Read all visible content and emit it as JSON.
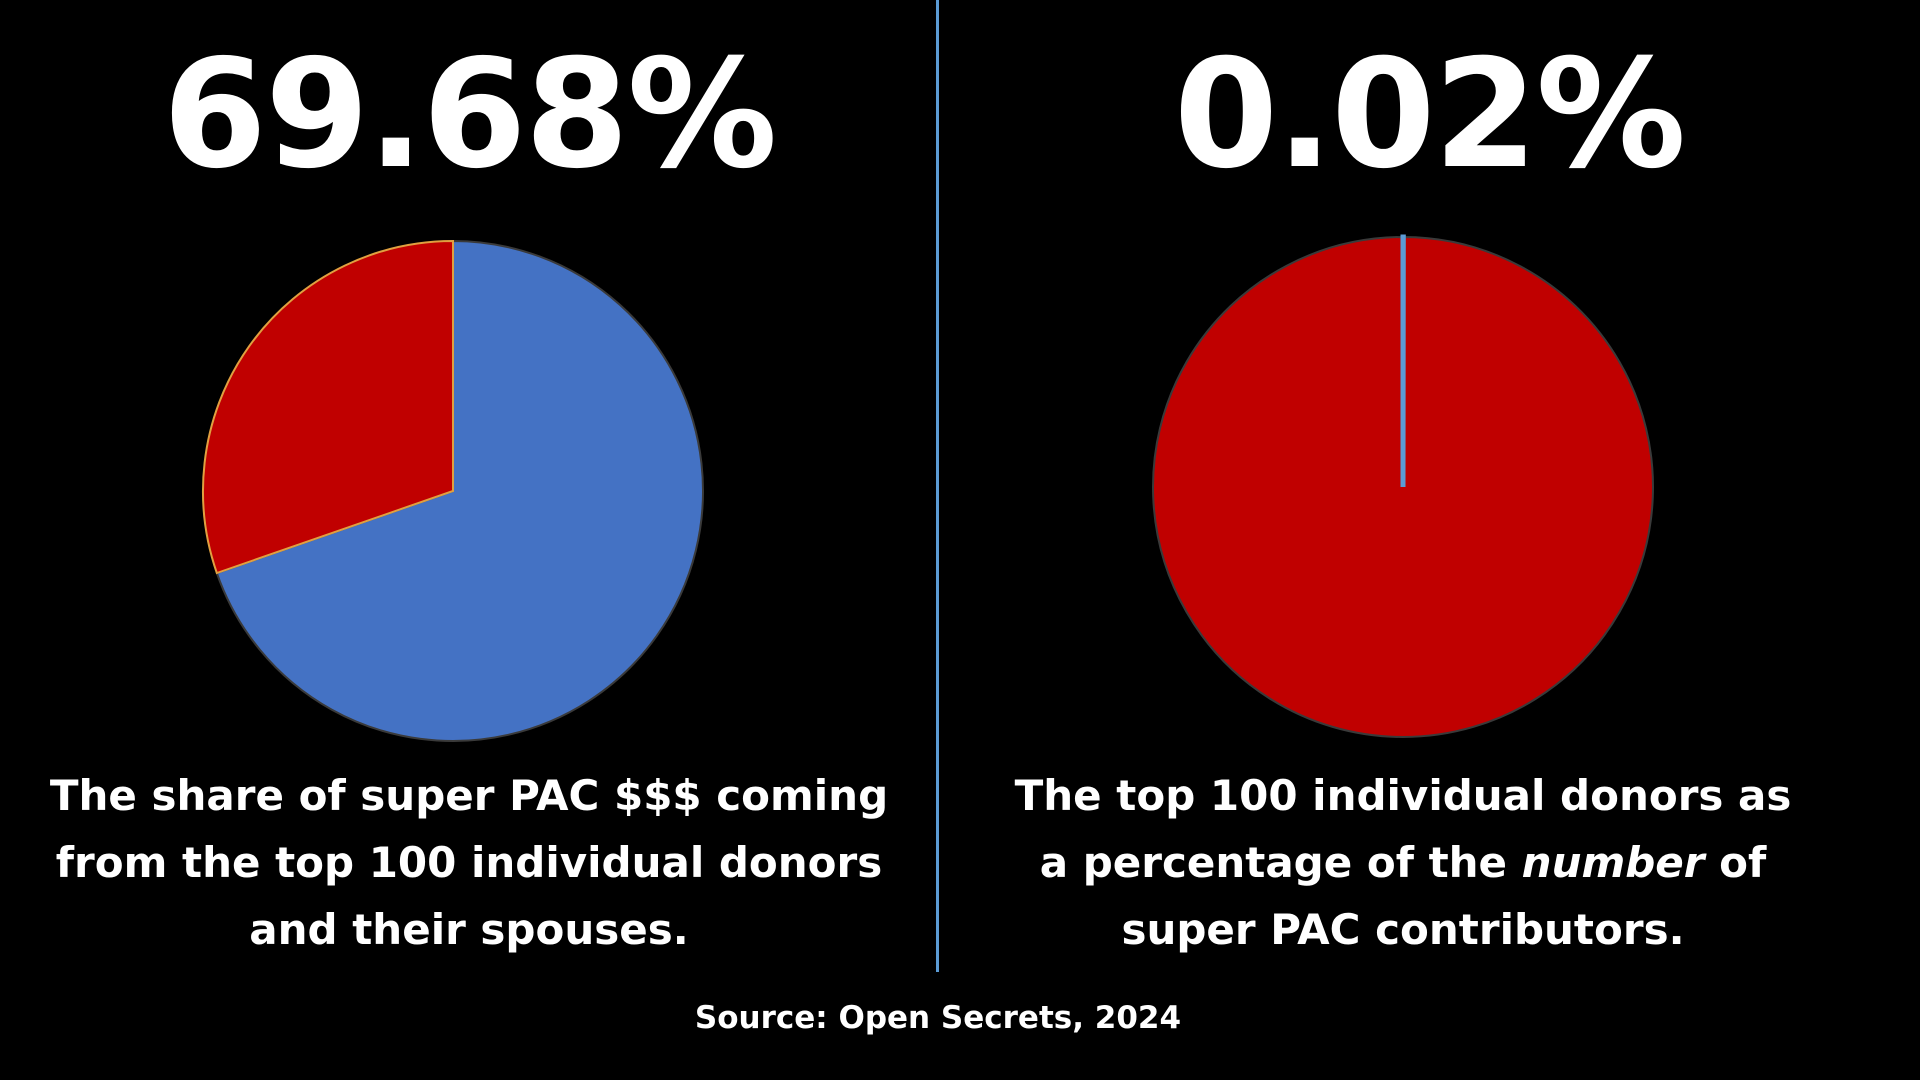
{
  "chart_data": [
    {
      "type": "pie",
      "headline": "69.68%",
      "caption_lines": [
        "The share of super PAC $$$ coming",
        "from the top 100 individual donors",
        "and their spouses."
      ],
      "slices": [
        {
          "value": 69.68,
          "color": "#4472c4"
        },
        {
          "value": 30.32,
          "color": "#c00000"
        }
      ]
    },
    {
      "type": "pie",
      "headline": "0.02%",
      "caption_parts": [
        "The top 100 individual donors as",
        "a percentage of the ",
        "number",
        " of",
        "super PAC contributors."
      ],
      "slices": [
        {
          "value": 0.02,
          "color": "#5b9bd5"
        },
        {
          "value": 99.98,
          "color": "#c00000"
        }
      ]
    }
  ],
  "source": "Source: Open Secrets, 2024",
  "colors": {
    "divider": "#5b9bd5",
    "background": "#000000"
  }
}
